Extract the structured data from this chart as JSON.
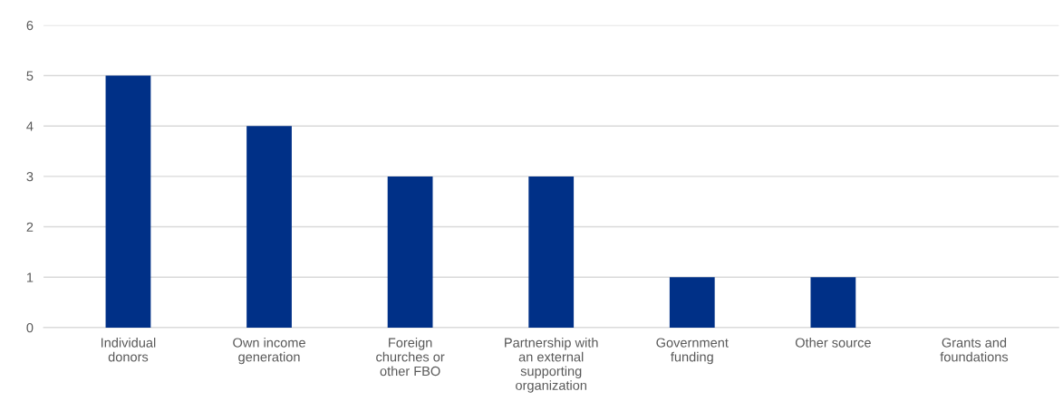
{
  "chart_data": {
    "type": "bar",
    "categories": [
      "Individual\ndonors",
      "Own income\ngeneration",
      "Foreign\nchurches or\nother FBO",
      "Partnership with\nan external\nsupporting\norganization",
      "Government\nfunding",
      "Other source",
      "Grants and\nfoundations"
    ],
    "values": [
      5,
      4,
      3,
      3,
      1,
      1,
      0
    ],
    "color": "#003087",
    "ylim": [
      0,
      6
    ],
    "yticks": [
      0,
      1,
      2,
      3,
      4,
      5,
      6
    ],
    "grid": "y",
    "legend": false
  }
}
